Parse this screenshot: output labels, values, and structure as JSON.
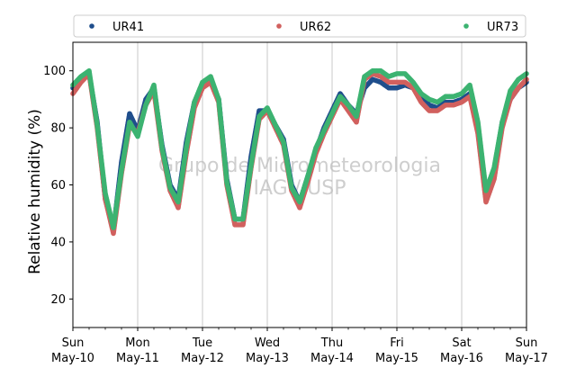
{
  "chart_data": {
    "type": "scatter",
    "title": "",
    "xlabel": "",
    "ylabel": "Relative humidity (%)",
    "ylim": [
      10,
      110
    ],
    "xlim": [
      "2020-05-10",
      "2020-05-17"
    ],
    "y_ticks": [
      20,
      40,
      60,
      80,
      100
    ],
    "x_ticks": [
      {
        "date": "2020-05-10",
        "day": "Sun",
        "label": "May-10"
      },
      {
        "date": "2020-05-11",
        "day": "Mon",
        "label": "May-11"
      },
      {
        "date": "2020-05-12",
        "day": "Tue",
        "label": "May-12"
      },
      {
        "date": "2020-05-13",
        "day": "Wed",
        "label": "May-13"
      },
      {
        "date": "2020-05-14",
        "day": "Thu",
        "label": "May-14"
      },
      {
        "date": "2020-05-15",
        "day": "Fri",
        "label": "May-15"
      },
      {
        "date": "2020-05-16",
        "day": "Sat",
        "label": "May-16"
      },
      {
        "date": "2020-05-17",
        "day": "Sun",
        "label": "May-17"
      }
    ],
    "grid": "vertical",
    "legend_position": "top",
    "watermark": [
      "Grupo de Micrometeorologia",
      "IAG / USP"
    ],
    "series": [
      {
        "name": "UR41",
        "color": "#1f4e8c",
        "points": [
          [
            "2020-05-10 00:00",
            94
          ],
          [
            "2020-05-10 03:00",
            97
          ],
          [
            "2020-05-10 06:00",
            99
          ],
          [
            "2020-05-10 09:00",
            82
          ],
          [
            "2020-05-10 12:00",
            55
          ],
          [
            "2020-05-10 15:00",
            44
          ],
          [
            "2020-05-10 18:00",
            68
          ],
          [
            "2020-05-10 21:00",
            85
          ],
          [
            "2020-05-11 00:00",
            79
          ],
          [
            "2020-05-11 03:00",
            90
          ],
          [
            "2020-05-11 06:00",
            94
          ],
          [
            "2020-05-11 09:00",
            74
          ],
          [
            "2020-05-11 12:00",
            60
          ],
          [
            "2020-05-11 15:00",
            55
          ],
          [
            "2020-05-11 18:00",
            75
          ],
          [
            "2020-05-11 21:00",
            89
          ],
          [
            "2020-05-12 00:00",
            95
          ],
          [
            "2020-05-12 03:00",
            96
          ],
          [
            "2020-05-12 06:00",
            90
          ],
          [
            "2020-05-12 09:00",
            62
          ],
          [
            "2020-05-12 12:00",
            48
          ],
          [
            "2020-05-12 15:00",
            48
          ],
          [
            "2020-05-12 18:00",
            70
          ],
          [
            "2020-05-12 21:00",
            86
          ],
          [
            "2020-05-13 00:00",
            86
          ],
          [
            "2020-05-13 03:00",
            81
          ],
          [
            "2020-05-13 06:00",
            76
          ],
          [
            "2020-05-13 09:00",
            60
          ],
          [
            "2020-05-13 12:00",
            54
          ],
          [
            "2020-05-13 15:00",
            63
          ],
          [
            "2020-05-13 18:00",
            72
          ],
          [
            "2020-05-13 21:00",
            80
          ],
          [
            "2020-05-14 00:00",
            86
          ],
          [
            "2020-05-14 03:00",
            92
          ],
          [
            "2020-05-14 06:00",
            88
          ],
          [
            "2020-05-14 09:00",
            85
          ],
          [
            "2020-05-14 12:00",
            94
          ],
          [
            "2020-05-14 15:00",
            97
          ],
          [
            "2020-05-14 18:00",
            96
          ],
          [
            "2020-05-14 21:00",
            94
          ],
          [
            "2020-05-15 00:00",
            94
          ],
          [
            "2020-05-15 03:00",
            95
          ],
          [
            "2020-05-15 06:00",
            94
          ],
          [
            "2020-05-15 09:00",
            91
          ],
          [
            "2020-05-15 12:00",
            88
          ],
          [
            "2020-05-15 15:00",
            87
          ],
          [
            "2020-05-15 18:00",
            89
          ],
          [
            "2020-05-15 21:00",
            89
          ],
          [
            "2020-05-16 00:00",
            90
          ],
          [
            "2020-05-16 03:00",
            92
          ],
          [
            "2020-05-16 06:00",
            80
          ],
          [
            "2020-05-16 09:00",
            56
          ],
          [
            "2020-05-16 12:00",
            65
          ],
          [
            "2020-05-16 15:00",
            82
          ],
          [
            "2020-05-16 18:00",
            90
          ],
          [
            "2020-05-16 21:00",
            94
          ],
          [
            "2020-05-17 00:00",
            96
          ]
        ]
      },
      {
        "name": "UR62",
        "color": "#d1605e",
        "points": [
          [
            "2020-05-10 00:00",
            92
          ],
          [
            "2020-05-10 03:00",
            96
          ],
          [
            "2020-05-10 06:00",
            99
          ],
          [
            "2020-05-10 09:00",
            80
          ],
          [
            "2020-05-10 12:00",
            55
          ],
          [
            "2020-05-10 15:00",
            43
          ],
          [
            "2020-05-10 18:00",
            64
          ],
          [
            "2020-05-10 21:00",
            81
          ],
          [
            "2020-05-11 00:00",
            78
          ],
          [
            "2020-05-11 03:00",
            88
          ],
          [
            "2020-05-11 06:00",
            93
          ],
          [
            "2020-05-11 09:00",
            72
          ],
          [
            "2020-05-11 12:00",
            58
          ],
          [
            "2020-05-11 15:00",
            52
          ],
          [
            "2020-05-11 18:00",
            71
          ],
          [
            "2020-05-11 21:00",
            87
          ],
          [
            "2020-05-12 00:00",
            94
          ],
          [
            "2020-05-12 03:00",
            96
          ],
          [
            "2020-05-12 06:00",
            89
          ],
          [
            "2020-05-12 09:00",
            60
          ],
          [
            "2020-05-12 12:00",
            46
          ],
          [
            "2020-05-12 15:00",
            46
          ],
          [
            "2020-05-12 18:00",
            66
          ],
          [
            "2020-05-12 21:00",
            83
          ],
          [
            "2020-05-13 00:00",
            86
          ],
          [
            "2020-05-13 03:00",
            80
          ],
          [
            "2020-05-13 06:00",
            74
          ],
          [
            "2020-05-13 09:00",
            58
          ],
          [
            "2020-05-13 12:00",
            52
          ],
          [
            "2020-05-13 15:00",
            61
          ],
          [
            "2020-05-13 18:00",
            71
          ],
          [
            "2020-05-13 21:00",
            78
          ],
          [
            "2020-05-14 00:00",
            84
          ],
          [
            "2020-05-14 03:00",
            90
          ],
          [
            "2020-05-14 06:00",
            86
          ],
          [
            "2020-05-14 09:00",
            82
          ],
          [
            "2020-05-14 12:00",
            97
          ],
          [
            "2020-05-14 15:00",
            99
          ],
          [
            "2020-05-14 18:00",
            98
          ],
          [
            "2020-05-14 21:00",
            96
          ],
          [
            "2020-05-15 00:00",
            96
          ],
          [
            "2020-05-15 03:00",
            96
          ],
          [
            "2020-05-15 06:00",
            94
          ],
          [
            "2020-05-15 09:00",
            89
          ],
          [
            "2020-05-15 12:00",
            86
          ],
          [
            "2020-05-15 15:00",
            86
          ],
          [
            "2020-05-15 18:00",
            88
          ],
          [
            "2020-05-15 21:00",
            88
          ],
          [
            "2020-05-16 00:00",
            89
          ],
          [
            "2020-05-16 03:00",
            91
          ],
          [
            "2020-05-16 06:00",
            78
          ],
          [
            "2020-05-16 09:00",
            54
          ],
          [
            "2020-05-16 12:00",
            62
          ],
          [
            "2020-05-16 15:00",
            80
          ],
          [
            "2020-05-16 18:00",
            90
          ],
          [
            "2020-05-16 21:00",
            94
          ],
          [
            "2020-05-17 00:00",
            97
          ]
        ]
      },
      {
        "name": "UR73",
        "color": "#3cb371",
        "points": [
          [
            "2020-05-10 00:00",
            95
          ],
          [
            "2020-05-10 03:00",
            98
          ],
          [
            "2020-05-10 06:00",
            100
          ],
          [
            "2020-05-10 09:00",
            81
          ],
          [
            "2020-05-10 12:00",
            57
          ],
          [
            "2020-05-10 15:00",
            45
          ],
          [
            "2020-05-10 18:00",
            65
          ],
          [
            "2020-05-10 21:00",
            82
          ],
          [
            "2020-05-11 00:00",
            77
          ],
          [
            "2020-05-11 03:00",
            88
          ],
          [
            "2020-05-11 06:00",
            95
          ],
          [
            "2020-05-11 09:00",
            73
          ],
          [
            "2020-05-11 12:00",
            59
          ],
          [
            "2020-05-11 15:00",
            54
          ],
          [
            "2020-05-11 18:00",
            73
          ],
          [
            "2020-05-11 21:00",
            89
          ],
          [
            "2020-05-12 00:00",
            96
          ],
          [
            "2020-05-12 03:00",
            98
          ],
          [
            "2020-05-12 06:00",
            90
          ],
          [
            "2020-05-12 09:00",
            61
          ],
          [
            "2020-05-12 12:00",
            48
          ],
          [
            "2020-05-12 15:00",
            48
          ],
          [
            "2020-05-12 18:00",
            67
          ],
          [
            "2020-05-12 21:00",
            84
          ],
          [
            "2020-05-13 00:00",
            87
          ],
          [
            "2020-05-13 03:00",
            81
          ],
          [
            "2020-05-13 06:00",
            75
          ],
          [
            "2020-05-13 09:00",
            59
          ],
          [
            "2020-05-13 12:00",
            54
          ],
          [
            "2020-05-13 15:00",
            63
          ],
          [
            "2020-05-13 18:00",
            73
          ],
          [
            "2020-05-13 21:00",
            79
          ],
          [
            "2020-05-14 00:00",
            85
          ],
          [
            "2020-05-14 03:00",
            91
          ],
          [
            "2020-05-14 06:00",
            88
          ],
          [
            "2020-05-14 09:00",
            84
          ],
          [
            "2020-05-14 12:00",
            98
          ],
          [
            "2020-05-14 15:00",
            100
          ],
          [
            "2020-05-14 18:00",
            100
          ],
          [
            "2020-05-14 21:00",
            98
          ],
          [
            "2020-05-15 00:00",
            99
          ],
          [
            "2020-05-15 03:00",
            99
          ],
          [
            "2020-05-15 06:00",
            96
          ],
          [
            "2020-05-15 09:00",
            92
          ],
          [
            "2020-05-15 12:00",
            90
          ],
          [
            "2020-05-15 15:00",
            89
          ],
          [
            "2020-05-15 18:00",
            91
          ],
          [
            "2020-05-15 21:00",
            91
          ],
          [
            "2020-05-16 00:00",
            92
          ],
          [
            "2020-05-16 03:00",
            95
          ],
          [
            "2020-05-16 06:00",
            82
          ],
          [
            "2020-05-16 09:00",
            58
          ],
          [
            "2020-05-16 12:00",
            66
          ],
          [
            "2020-05-16 15:00",
            82
          ],
          [
            "2020-05-16 18:00",
            93
          ],
          [
            "2020-05-16 21:00",
            97
          ],
          [
            "2020-05-17 00:00",
            99
          ]
        ]
      }
    ]
  }
}
